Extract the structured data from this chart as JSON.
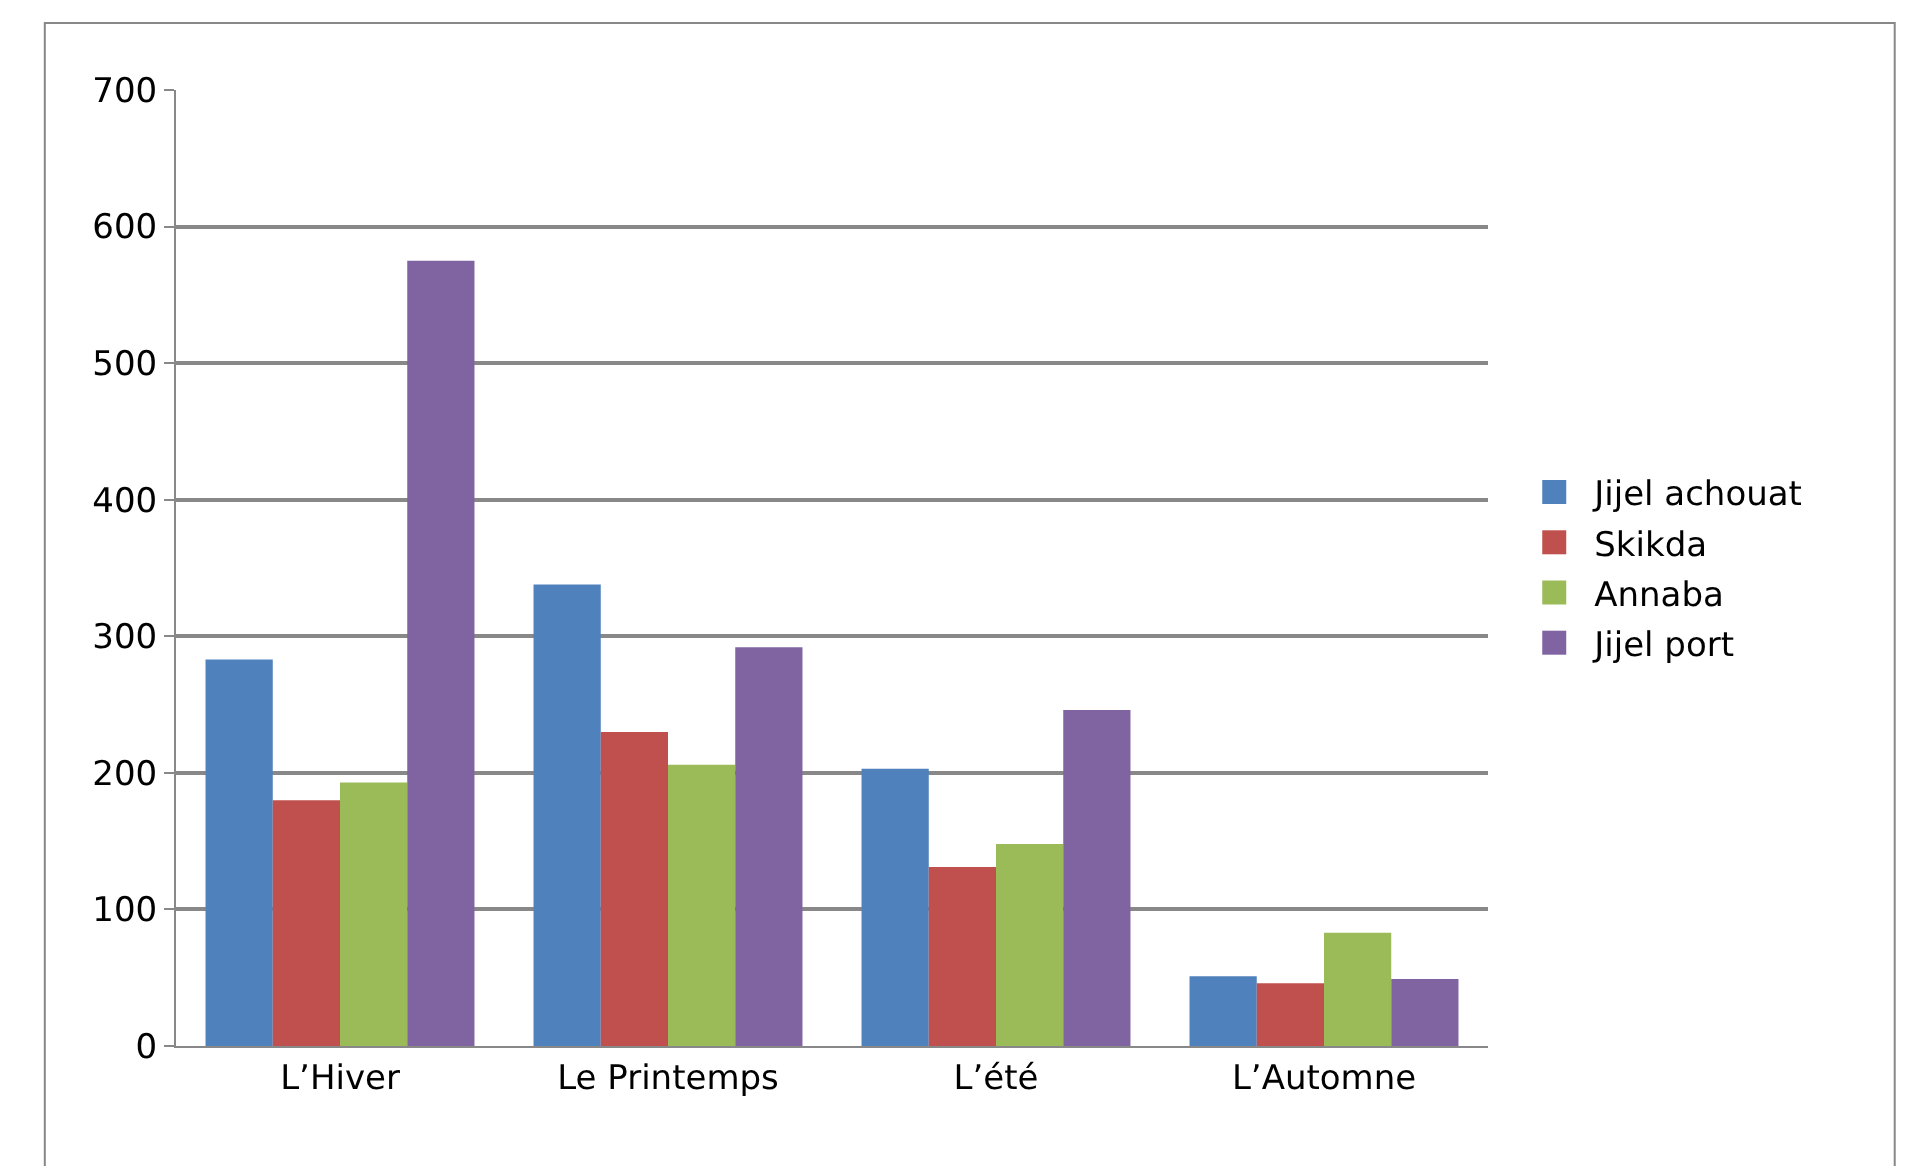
{
  "chart_data": {
    "type": "bar",
    "categories": [
      "L’Hiver",
      "Le Printemps",
      "L’été",
      "L’Automne"
    ],
    "series": [
      {
        "name": "Jijel achouat",
        "color": "#4f81bd",
        "values": [
          283,
          338,
          203,
          51
        ]
      },
      {
        "name": "Skikda",
        "color": "#c0504d",
        "values": [
          180,
          230,
          131,
          46
        ]
      },
      {
        "name": "Annaba",
        "color": "#9bbb59",
        "values": [
          193,
          206,
          148,
          83
        ]
      },
      {
        "name": "Jijel port",
        "color": "#8064a2",
        "values": [
          575,
          292,
          246,
          49
        ]
      }
    ],
    "ylim": [
      0,
      700
    ],
    "yticks": [
      0,
      100,
      200,
      300,
      400,
      500,
      600,
      700
    ],
    "grid": "y",
    "legend": "right"
  }
}
